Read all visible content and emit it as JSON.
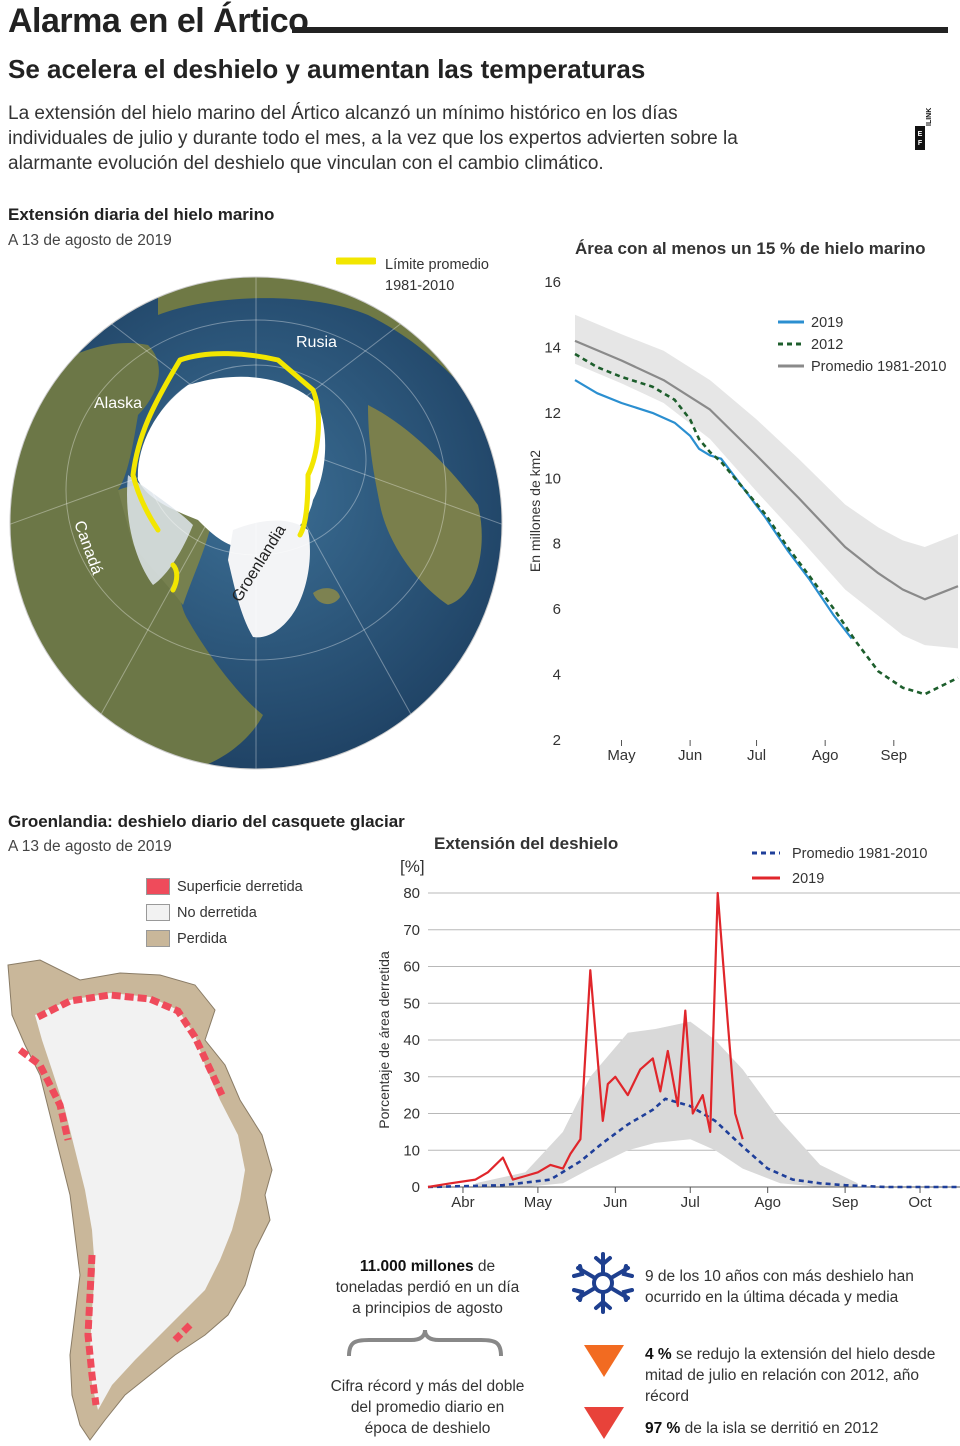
{
  "header": {
    "title": "Alarma en el Ártico",
    "subtitle": "Se acelera el deshielo y aumentan las temperaturas",
    "intro": "La extensión del hielo marino del Ártico alcanzó un mínimo histórico en los días individuales de julio y durante todo el mes, a la vez que los expertos advierten sobre la alarmante evolución del deshielo que vinculan con el cambio climático.",
    "logo_text": "EFE|ILINK"
  },
  "sea_ice": {
    "section_title": "Extensión diaria del hielo marino",
    "date": "A 13 de agosto de 2019",
    "map_legend": "Límite promedio 1981-2010",
    "map_legend_line1": "Límite promedio",
    "map_legend_line2": "1981-2010",
    "labels": {
      "alaska": "Alaska",
      "rusia": "Rusia",
      "canada": "Canadá",
      "groenlandia": "Groenlandia"
    },
    "colors": {
      "limit": "#f2e600",
      "ocean": "#2f5f86",
      "land": "#6f7a45",
      "ice": "#ffffff"
    }
  },
  "greenland": {
    "section_title": "Groenlandia: deshielo diario del casquete glaciar",
    "date": "A 13 de agosto de 2019",
    "legend": [
      {
        "label": "Superficie derretida",
        "color": "#ef4b5b"
      },
      {
        "label": "No derretida",
        "color": "#f2f2f2"
      },
      {
        "label": "Perdida",
        "color": "#c9b79a"
      }
    ]
  },
  "stats": {
    "big_number": "11.000 millones",
    "big_number_rest": " de toneladas perdió en un día a principios de agosto",
    "record_note": "Cifra récord y más del doble del promedio diario en época de deshielo",
    "fact1": "9 de los 10 años con más deshielo han ocurrido en la última década y media",
    "fact2_bold": "4 %",
    "fact2_rest": " se redujo la extensión del hielo desde mitad de julio en relación con 2012, año récord",
    "fact3_bold": "97 %",
    "fact3_rest": " de la isla se derritió en 2012",
    "colors": {
      "snowflake": "#1e3f8f",
      "triangle1": "#f26b21",
      "triangle2": "#e8423a"
    }
  },
  "chart_data": [
    {
      "type": "line",
      "title": "Área con al menos un 15 % de hielo marino",
      "ylabel": "En millones de km2",
      "ylim": [
        2,
        16
      ],
      "yticks": [
        2,
        4,
        6,
        8,
        10,
        12,
        14,
        16
      ],
      "xlim": [
        "2019-04-10",
        "2019-09-30"
      ],
      "xticks": [
        "May",
        "Jun",
        "Jul",
        "Ago",
        "Sep"
      ],
      "grid": false,
      "legend_position": "top-right",
      "band": {
        "name": "Promedio 1981-2010",
        "x": [
          "2019-04-10",
          "2019-05-01",
          "2019-05-20",
          "2019-06-10",
          "2019-07-01",
          "2019-07-20",
          "2019-08-10",
          "2019-08-25",
          "2019-09-05",
          "2019-09-15",
          "2019-09-30"
        ],
        "upper": [
          15.0,
          14.4,
          13.9,
          13.0,
          11.8,
          10.6,
          9.2,
          8.5,
          8.1,
          7.9,
          8.3
        ],
        "lower": [
          13.5,
          12.9,
          12.3,
          11.2,
          9.6,
          8.2,
          6.6,
          5.8,
          5.2,
          4.9,
          4.8
        ]
      },
      "series": [
        {
          "name": "2019",
          "color": "#2b8fd0",
          "dash": false,
          "x": [
            "2019-04-10",
            "2019-04-20",
            "2019-05-01",
            "2019-05-15",
            "2019-05-25",
            "2019-06-01",
            "2019-06-05",
            "2019-06-10",
            "2019-06-15",
            "2019-06-25",
            "2019-07-05",
            "2019-07-15",
            "2019-07-25",
            "2019-08-05",
            "2019-08-13"
          ],
          "y": [
            13.0,
            12.6,
            12.3,
            12.0,
            11.7,
            11.3,
            10.9,
            10.7,
            10.6,
            9.7,
            8.8,
            7.8,
            6.9,
            5.8,
            5.1
          ]
        },
        {
          "name": "2012",
          "color": "#1d5e2c",
          "dash": true,
          "x": [
            "2019-04-10",
            "2019-04-20",
            "2019-05-01",
            "2019-05-15",
            "2019-05-25",
            "2019-06-01",
            "2019-06-05",
            "2019-06-10",
            "2019-06-15",
            "2019-06-25",
            "2019-07-05",
            "2019-07-15",
            "2019-07-25",
            "2019-08-05",
            "2019-08-15",
            "2019-08-25",
            "2019-09-05",
            "2019-09-15",
            "2019-09-30"
          ],
          "y": [
            13.8,
            13.4,
            13.1,
            12.8,
            12.4,
            11.8,
            11.2,
            10.8,
            10.5,
            9.7,
            8.9,
            7.9,
            7.0,
            6.0,
            5.0,
            4.1,
            3.6,
            3.4,
            3.9
          ]
        },
        {
          "name": "Promedio 1981-2010",
          "color": "#8a8a8a",
          "dash": false,
          "x": [
            "2019-04-10",
            "2019-05-01",
            "2019-05-20",
            "2019-06-10",
            "2019-07-01",
            "2019-07-20",
            "2019-08-10",
            "2019-08-25",
            "2019-09-05",
            "2019-09-15",
            "2019-09-30"
          ],
          "y": [
            14.2,
            13.6,
            13.0,
            12.1,
            10.7,
            9.4,
            7.9,
            7.1,
            6.6,
            6.3,
            6.7
          ]
        }
      ]
    },
    {
      "type": "line",
      "title": "Extensión del deshielo",
      "ylabel": "Porcentaje de área derretida",
      "yunit": "[%]",
      "ylim": [
        0,
        80
      ],
      "yticks": [
        0,
        10,
        20,
        30,
        40,
        50,
        60,
        70,
        80
      ],
      "xlim": [
        "2019-04-01",
        "2019-10-31"
      ],
      "xticks": [
        "Abr",
        "May",
        "Jun",
        "Jul",
        "Ago",
        "Sep",
        "Oct"
      ],
      "grid": true,
      "legend_position": "top-right",
      "band": {
        "name": "rango",
        "x": [
          "2019-04-20",
          "2019-05-10",
          "2019-05-25",
          "2019-06-05",
          "2019-06-20",
          "2019-07-01",
          "2019-07-15",
          "2019-07-25",
          "2019-08-05",
          "2019-08-20",
          "2019-09-05",
          "2019-09-20"
        ],
        "upper": [
          1,
          4,
          15,
          30,
          42,
          43,
          45,
          40,
          32,
          18,
          6,
          1
        ],
        "lower": [
          0,
          0,
          1,
          5,
          10,
          12,
          13,
          10,
          5,
          1,
          0,
          0
        ]
      },
      "series": [
        {
          "name": "Promedio 1981-2010",
          "color": "#1f3f9a",
          "dash": true,
          "x": [
            "2019-04-01",
            "2019-05-01",
            "2019-05-20",
            "2019-06-01",
            "2019-06-10",
            "2019-06-20",
            "2019-06-30",
            "2019-07-05",
            "2019-07-15",
            "2019-07-25",
            "2019-08-05",
            "2019-08-15",
            "2019-08-25",
            "2019-09-05",
            "2019-09-15",
            "2019-10-01",
            "2019-10-31"
          ],
          "y": [
            0,
            0.5,
            2,
            7,
            12,
            17,
            21,
            24,
            22,
            18,
            11,
            5,
            2,
            1,
            0.5,
            0,
            0
          ]
        },
        {
          "name": "2019",
          "color": "#e0262b",
          "dash": false,
          "x": [
            "2019-04-01",
            "2019-04-10",
            "2019-04-20",
            "2019-04-25",
            "2019-05-01",
            "2019-05-05",
            "2019-05-10",
            "2019-05-15",
            "2019-05-20",
            "2019-05-25",
            "2019-05-28",
            "2019-06-01",
            "2019-06-05",
            "2019-06-10",
            "2019-06-12",
            "2019-06-15",
            "2019-06-20",
            "2019-06-25",
            "2019-06-30",
            "2019-07-03",
            "2019-07-06",
            "2019-07-10",
            "2019-07-13",
            "2019-07-16",
            "2019-07-20",
            "2019-07-23",
            "2019-07-26",
            "2019-07-30",
            "2019-08-02",
            "2019-08-05"
          ],
          "y": [
            0,
            1,
            2,
            4,
            8,
            2,
            3,
            4,
            6,
            5,
            9,
            13,
            59,
            18,
            28,
            30,
            25,
            32,
            35,
            26,
            37,
            22,
            48,
            20,
            25,
            15,
            80,
            45,
            20,
            13
          ]
        }
      ]
    }
  ]
}
